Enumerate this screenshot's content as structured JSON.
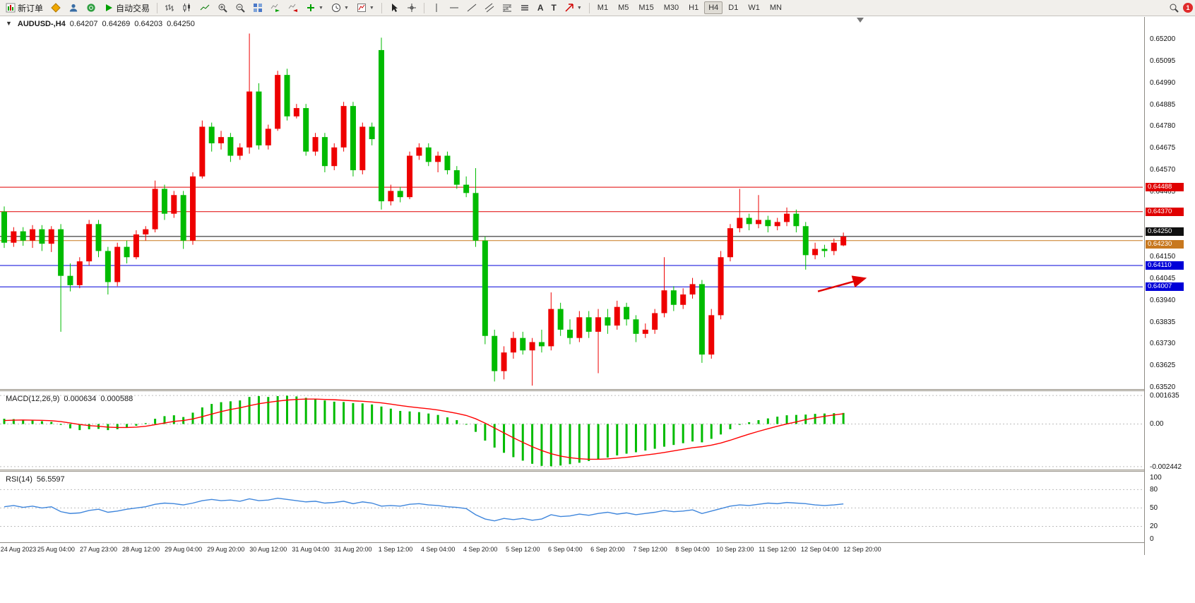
{
  "toolbar": {
    "new_order": "新订单",
    "auto_trading": "自动交易",
    "text_tool": "A",
    "label_tool": "T",
    "timeframes": [
      "M1",
      "M5",
      "M15",
      "M30",
      "H1",
      "H4",
      "D1",
      "W1",
      "MN"
    ],
    "active_timeframe": "H4",
    "notification_count": "1"
  },
  "icons": {
    "dropdown_caret": "▼",
    "one_click_toggle": "▼"
  },
  "chart": {
    "symbol_period": "AUDUSD-,H4",
    "open": "0.64207",
    "high": "0.64269",
    "low": "0.64203",
    "close": "0.64250"
  },
  "chart_data": [
    {
      "type": "candlestick",
      "title": "AUDUSD- H4",
      "up_color": "#ee0000",
      "down_color": "#00bb00",
      "ylim": [
        0.6351,
        0.6531
      ],
      "y_ticks": [
        0.652,
        0.65095,
        0.6499,
        0.64885,
        0.6478,
        0.64675,
        0.6457,
        0.64465,
        0.6415,
        0.64045,
        0.6394,
        0.63835,
        0.6373,
        0.63625,
        0.6352
      ],
      "hlines": [
        {
          "price": 0.64488,
          "color": "#e00000",
          "label": "0.64488",
          "dy": 0
        },
        {
          "price": 0.6437,
          "color": "#e00000",
          "label": "0.64370",
          "dy": 0
        },
        {
          "price": 0.6425,
          "color": "#101010",
          "label": "0.64250",
          "dy": -7
        },
        {
          "price": 0.6423,
          "color": "#c8781e",
          "label": "0.64230",
          "dy": 5
        },
        {
          "price": 0.6411,
          "color": "#0000d8",
          "label": "0.64110",
          "dy": 0
        },
        {
          "price": 0.64007,
          "color": "#0000d8",
          "label": "0.64007",
          "dy": 0
        }
      ],
      "arrow": {
        "x1_i": 86.3,
        "y1_price": 0.63985,
        "x2_i": 91.3,
        "y2_price": 0.64048,
        "color": "#e00000"
      },
      "x_labels": [
        {
          "t": "24 Aug 2023",
          "i": 1.5
        },
        {
          "t": "25 Aug 04:00",
          "i": 5.5
        },
        {
          "t": "27 Aug 23:00",
          "i": 10
        },
        {
          "t": "28 Aug 12:00",
          "i": 14.5
        },
        {
          "t": "29 Aug 04:00",
          "i": 19
        },
        {
          "t": "29 Aug 20:00",
          "i": 23.5
        },
        {
          "t": "30 Aug 12:00",
          "i": 28
        },
        {
          "t": "31 Aug 04:00",
          "i": 32.5
        },
        {
          "t": "31 Aug 20:00",
          "i": 37
        },
        {
          "t": "1 Sep 12:00",
          "i": 41.5
        },
        {
          "t": "4 Sep 04:00",
          "i": 46
        },
        {
          "t": "4 Sep 20:00",
          "i": 50.5
        },
        {
          "t": "5 Sep 12:00",
          "i": 55
        },
        {
          "t": "6 Sep 04:00",
          "i": 59.5
        },
        {
          "t": "6 Sep 20:00",
          "i": 64
        },
        {
          "t": "7 Sep 12:00",
          "i": 68.5
        },
        {
          "t": "8 Sep 04:00",
          "i": 73
        },
        {
          "t": "10 Sep 23:00",
          "i": 77.5
        },
        {
          "t": "11 Sep 12:00",
          "i": 82
        },
        {
          "t": "12 Sep 04:00",
          "i": 86.5
        },
        {
          "t": "12 Sep 20:00",
          "i": 91
        }
      ],
      "ohlc": [
        [
          0.6437,
          0.64395,
          0.64195,
          0.6422
        ],
        [
          0.6422,
          0.64295,
          0.642,
          0.64275
        ],
        [
          0.64275,
          0.64295,
          0.64205,
          0.6423
        ],
        [
          0.6423,
          0.64305,
          0.64195,
          0.64285
        ],
        [
          0.64285,
          0.64305,
          0.6418,
          0.64215
        ],
        [
          0.64215,
          0.643,
          0.64175,
          0.64285
        ],
        [
          0.64285,
          0.6431,
          0.6379,
          0.6406
        ],
        [
          0.6406,
          0.6412,
          0.63985,
          0.64015
        ],
        [
          0.64015,
          0.6415,
          0.64,
          0.6413
        ],
        [
          0.6413,
          0.6433,
          0.6411,
          0.6431
        ],
        [
          0.6431,
          0.6433,
          0.6415,
          0.6418
        ],
        [
          0.6418,
          0.642,
          0.6397,
          0.6403
        ],
        [
          0.6403,
          0.6422,
          0.6401,
          0.642
        ],
        [
          0.642,
          0.6423,
          0.6412,
          0.6415
        ],
        [
          0.6415,
          0.6428,
          0.6414,
          0.6426
        ],
        [
          0.6426,
          0.643,
          0.6423,
          0.64285
        ],
        [
          0.64285,
          0.6452,
          0.6427,
          0.6448
        ],
        [
          0.6448,
          0.645,
          0.6433,
          0.6436
        ],
        [
          0.6436,
          0.6447,
          0.6434,
          0.6445
        ],
        [
          0.6445,
          0.6447,
          0.6419,
          0.6423
        ],
        [
          0.6423,
          0.6456,
          0.6421,
          0.6454
        ],
        [
          0.6454,
          0.6481,
          0.6453,
          0.6478
        ],
        [
          0.6478,
          0.648,
          0.6466,
          0.647
        ],
        [
          0.647,
          0.6476,
          0.6467,
          0.6473
        ],
        [
          0.6473,
          0.6475,
          0.6461,
          0.6464
        ],
        [
          0.6464,
          0.647,
          0.6462,
          0.6468
        ],
        [
          0.6468,
          0.6523,
          0.6465,
          0.6495
        ],
        [
          0.6495,
          0.6499,
          0.6467,
          0.6469
        ],
        [
          0.6469,
          0.6479,
          0.6467,
          0.6477
        ],
        [
          0.6477,
          0.6505,
          0.6476,
          0.6503
        ],
        [
          0.6503,
          0.6506,
          0.6481,
          0.6483
        ],
        [
          0.6483,
          0.6489,
          0.6482,
          0.6487
        ],
        [
          0.6487,
          0.6489,
          0.6464,
          0.6466
        ],
        [
          0.6466,
          0.6475,
          0.6464,
          0.6473
        ],
        [
          0.6473,
          0.6475,
          0.6456,
          0.6459
        ],
        [
          0.6459,
          0.647,
          0.6457,
          0.6468
        ],
        [
          0.6468,
          0.649,
          0.6466,
          0.6488
        ],
        [
          0.6488,
          0.649,
          0.6454,
          0.6457
        ],
        [
          0.6457,
          0.648,
          0.6455,
          0.6478
        ],
        [
          0.6478,
          0.648,
          0.6469,
          0.6472
        ],
        [
          0.6515,
          0.6521,
          0.6438,
          0.6442
        ],
        [
          0.6442,
          0.645,
          0.644,
          0.6447
        ],
        [
          0.6447,
          0.6449,
          0.64415,
          0.6444
        ],
        [
          0.6444,
          0.6466,
          0.6443,
          0.6464
        ],
        [
          0.6464,
          0.647,
          0.6462,
          0.6468
        ],
        [
          0.6468,
          0.647,
          0.6459,
          0.6461
        ],
        [
          0.6461,
          0.6466,
          0.6456,
          0.6464
        ],
        [
          0.6464,
          0.6466,
          0.6455,
          0.6457
        ],
        [
          0.6457,
          0.6459,
          0.6448,
          0.645
        ],
        [
          0.645,
          0.6454,
          0.6444,
          0.6446
        ],
        [
          0.6446,
          0.6458,
          0.642,
          0.6423
        ],
        [
          0.6423,
          0.6425,
          0.6373,
          0.6377
        ],
        [
          0.6377,
          0.638,
          0.6355,
          0.636
        ],
        [
          0.636,
          0.6372,
          0.6356,
          0.6369
        ],
        [
          0.6369,
          0.6379,
          0.6366,
          0.6376
        ],
        [
          0.6376,
          0.6379,
          0.6368,
          0.637
        ],
        [
          0.637,
          0.6376,
          0.6353,
          0.6374
        ],
        [
          0.6374,
          0.638,
          0.6369,
          0.6372
        ],
        [
          0.6372,
          0.6398,
          0.637,
          0.639
        ],
        [
          0.639,
          0.6393,
          0.6377,
          0.638
        ],
        [
          0.638,
          0.6385,
          0.6373,
          0.6376
        ],
        [
          0.6376,
          0.6389,
          0.6374,
          0.6386
        ],
        [
          0.6386,
          0.6389,
          0.6376,
          0.6379
        ],
        [
          0.6379,
          0.639,
          0.6359,
          0.6386
        ],
        [
          0.6386,
          0.639,
          0.6378,
          0.6382
        ],
        [
          0.6382,
          0.6394,
          0.638,
          0.6391
        ],
        [
          0.6391,
          0.6393,
          0.6382,
          0.6385
        ],
        [
          0.6385,
          0.6387,
          0.6374,
          0.6378
        ],
        [
          0.6378,
          0.6383,
          0.6376,
          0.638
        ],
        [
          0.638,
          0.639,
          0.6378,
          0.6388
        ],
        [
          0.6388,
          0.6415,
          0.6386,
          0.6399
        ],
        [
          0.6399,
          0.6401,
          0.6389,
          0.6392
        ],
        [
          0.6392,
          0.64,
          0.639,
          0.6397
        ],
        [
          0.6397,
          0.6405,
          0.6395,
          0.6402
        ],
        [
          0.6402,
          0.6404,
          0.6364,
          0.6368
        ],
        [
          0.6368,
          0.639,
          0.6366,
          0.6387
        ],
        [
          0.6387,
          0.6418,
          0.6385,
          0.6415
        ],
        [
          0.6415,
          0.6431,
          0.6413,
          0.6429
        ],
        [
          0.6429,
          0.6448,
          0.6427,
          0.6434
        ],
        [
          0.6434,
          0.6436,
          0.6428,
          0.6431
        ],
        [
          0.6431,
          0.6445,
          0.6429,
          0.6433
        ],
        [
          0.6433,
          0.6435,
          0.6427,
          0.643
        ],
        [
          0.643,
          0.6434,
          0.6428,
          0.6432
        ],
        [
          0.6432,
          0.6439,
          0.643,
          0.6436
        ],
        [
          0.6436,
          0.6438,
          0.6427,
          0.643
        ],
        [
          0.643,
          0.6432,
          0.6409,
          0.6416
        ],
        [
          0.6416,
          0.6422,
          0.6414,
          0.6419
        ],
        [
          0.6419,
          0.6421,
          0.6415,
          0.6418
        ],
        [
          0.6418,
          0.6424,
          0.6416,
          0.6422
        ],
        [
          0.64207,
          0.64269,
          0.64203,
          0.6425
        ]
      ]
    },
    {
      "type": "bar",
      "label": "MACD(12,26,9)",
      "value_main": "0.000634",
      "value_signal": "0.000588",
      "bar_color": "#00bb00",
      "signal_color": "#ff0000",
      "ylim": [
        -0.00265,
        0.0018
      ],
      "y_ticks": [
        0.001635,
        0,
        -0.002442
      ],
      "y_tick_labels": [
        "0.001635",
        "0.00",
        "-0.002442"
      ],
      "histogram": [
        0.0003,
        0.00028,
        0.00024,
        0.0002,
        0.00016,
        0.00012,
        -5e-05,
        -0.00025,
        -0.00035,
        -0.0003,
        -0.00028,
        -0.00035,
        -0.0003,
        -0.0002,
        -0.0001,
        5e-05,
        0.0003,
        0.00045,
        0.0005,
        0.0004,
        0.00065,
        0.00095,
        0.00115,
        0.00125,
        0.0013,
        0.00135,
        0.00155,
        0.0016,
        0.00155,
        0.0016,
        0.00162,
        0.00158,
        0.0015,
        0.00142,
        0.00135,
        0.00128,
        0.00126,
        0.0012,
        0.00118,
        0.00112,
        0.001,
        0.00088,
        0.00075,
        0.00072,
        0.00068,
        0.0006,
        0.00052,
        0.00038,
        0.00022,
        0.0,
        -0.00045,
        -0.00095,
        -0.00135,
        -0.00165,
        -0.0019,
        -0.0021,
        -0.00228,
        -0.0024,
        -0.00242,
        -0.00238,
        -0.0023,
        -0.00222,
        -0.00212,
        -0.00202,
        -0.00192,
        -0.0018,
        -0.0017,
        -0.00162,
        -0.00152,
        -0.00142,
        -0.0013,
        -0.0012,
        -0.0011,
        -0.001,
        -0.00105,
        -0.00085,
        -0.0006,
        -0.0003,
        -5e-05,
        0.0001,
        0.00022,
        0.00032,
        0.00042,
        0.0005,
        0.00052,
        0.00054,
        0.00058,
        0.0006,
        0.00062,
        0.000634
      ],
      "signal": [
        0.0002,
        0.00022,
        0.00023,
        0.00022,
        0.00021,
        0.00019,
        0.00014,
        6e-05,
        -3e-05,
        -9e-05,
        -0.00013,
        -0.00018,
        -0.0002,
        -0.0002,
        -0.00018,
        -0.00013,
        -4e-05,
        6e-05,
        0.00015,
        0.0002,
        0.00029,
        0.00042,
        0.00057,
        0.00071,
        0.00083,
        0.00093,
        0.00105,
        0.00116,
        0.00124,
        0.00131,
        0.00137,
        0.00141,
        0.00143,
        0.00143,
        0.00141,
        0.00139,
        0.00136,
        0.00133,
        0.0013,
        0.00126,
        0.00121,
        0.00114,
        0.00106,
        0.00099,
        0.00093,
        0.00087,
        0.0008,
        0.00071,
        0.00061,
        0.00049,
        0.0003,
        5e-05,
        -0.00023,
        -0.00051,
        -0.00079,
        -0.00105,
        -0.0013,
        -0.00152,
        -0.0017,
        -0.00184,
        -0.00193,
        -0.00199,
        -0.00202,
        -0.00202,
        -0.002,
        -0.00196,
        -0.00191,
        -0.00185,
        -0.00178,
        -0.00171,
        -0.00163,
        -0.00154,
        -0.00145,
        -0.00136,
        -0.0013,
        -0.00121,
        -0.00109,
        -0.00093,
        -0.00075,
        -0.00058,
        -0.00042,
        -0.00027,
        -0.00013,
        0.0,
        0.00012,
        0.00025,
        0.00035,
        0.00044,
        0.00052,
        0.000588
      ]
    },
    {
      "type": "line",
      "label": "RSI(14)",
      "value": "56.5597",
      "line_color": "#3f86dc",
      "ylim": [
        -6,
        107
      ],
      "y_ticks": [
        100,
        80,
        50,
        20,
        0
      ],
      "levels": [
        80,
        50,
        20
      ],
      "values": [
        52,
        54,
        51,
        53,
        50,
        52,
        44,
        41,
        42,
        46,
        48,
        43,
        45,
        48,
        50,
        52,
        56,
        58,
        57,
        55,
        58,
        62,
        64,
        62,
        63,
        61,
        65,
        62,
        63,
        66,
        64,
        62,
        60,
        61,
        58,
        59,
        61,
        57,
        60,
        58,
        53,
        54,
        53,
        56,
        57,
        55,
        54,
        52,
        51,
        49,
        39,
        32,
        29,
        33,
        31,
        33,
        30,
        32,
        39,
        36,
        37,
        40,
        38,
        41,
        43,
        40,
        42,
        39,
        41,
        43,
        46,
        44,
        45,
        47,
        41,
        45,
        49,
        53,
        55,
        54,
        56,
        58,
        57,
        59,
        58,
        57,
        55,
        54,
        55,
        56.56
      ]
    }
  ]
}
